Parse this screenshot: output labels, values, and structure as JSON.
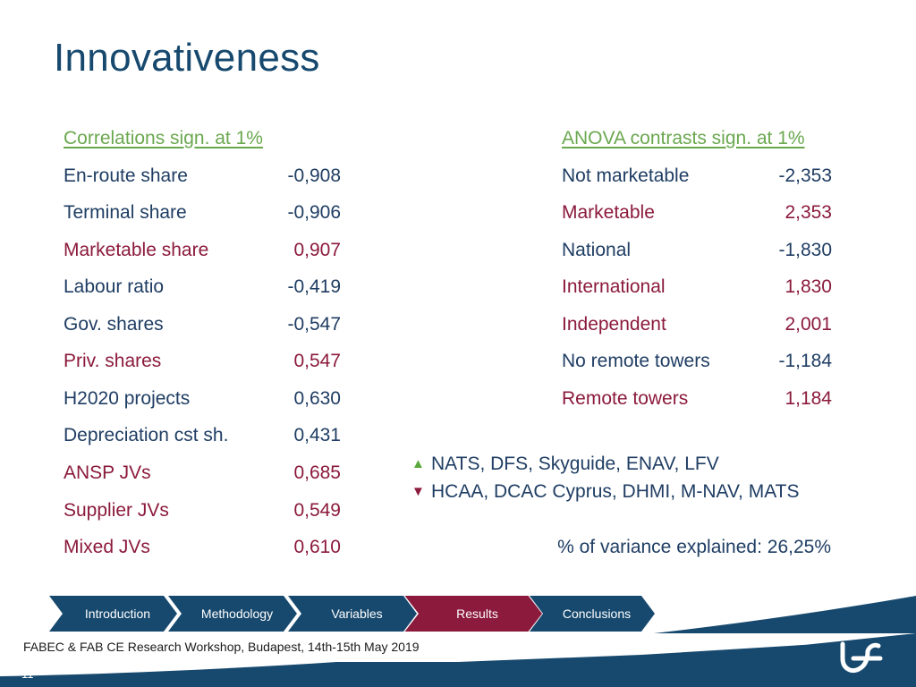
{
  "title": "Innovativeness",
  "correlations": {
    "header": "Correlations sign. at 1%",
    "rows": [
      {
        "label": "En-route share",
        "value": "-0,908"
      },
      {
        "label": "Terminal share",
        "value": "-0,906"
      },
      {
        "label": "Marketable share",
        "value": "0,907"
      },
      {
        "label": "Labour ratio",
        "value": "-0,419"
      },
      {
        "label": "Gov. shares",
        "value": "-0,547"
      },
      {
        "label": "Priv. shares",
        "value": "0,547"
      },
      {
        "label": "H2020 projects",
        "value": "0,630"
      },
      {
        "label": "Depreciation cst sh.",
        "value": "0,431"
      },
      {
        "label": "ANSP JVs",
        "value": "0,685"
      },
      {
        "label": "Supplier JVs",
        "value": "0,549"
      },
      {
        "label": "Mixed JVs",
        "value": "0,610"
      }
    ]
  },
  "anova": {
    "header": "ANOVA contrasts sign. at 1%",
    "rows": [
      {
        "label": "Not marketable",
        "value": "-2,353"
      },
      {
        "label": "Marketable",
        "value": "2,353"
      },
      {
        "label": "National",
        "value": "-1,830"
      },
      {
        "label": "International",
        "value": "1,830"
      },
      {
        "label": "Independent",
        "value": "2,001"
      },
      {
        "label": "No remote towers",
        "value": "-1,184"
      },
      {
        "label": "Remote towers",
        "value": "1,184"
      }
    ]
  },
  "legend": {
    "up_icon": "▲",
    "up_text": "NATS, DFS, Skyguide, ENAV, LFV",
    "down_icon": "▼",
    "down_text": "HCAA, DCAC Cyprus, DHMI, M-NAV, MATS"
  },
  "variance_text": "% of variance explained: 26,25%",
  "nav": {
    "steps": [
      {
        "label": "Introduction"
      },
      {
        "label": "Methodology"
      },
      {
        "label": "Variables"
      },
      {
        "label": "Results"
      },
      {
        "label": "Conclusions"
      }
    ],
    "active_index": 3
  },
  "footer": "FABEC & FAB CE Research Workshop, Budapest, 14th-15th May 2019",
  "page_number": "11",
  "colors": {
    "navy": "#1f3d63",
    "wine": "#8b1a3c",
    "green": "#6aa84f",
    "nav_blue": "#17496e",
    "nav_active": "#8b1a3c"
  }
}
